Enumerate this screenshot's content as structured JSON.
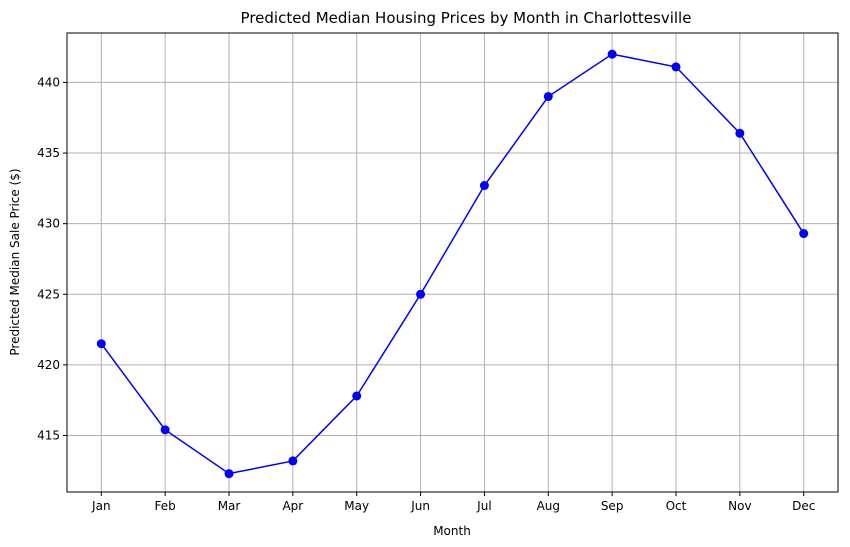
{
  "chart_data": {
    "type": "line",
    "title": "Predicted Median Housing Prices by Month in Charlottesville",
    "xlabel": "Month",
    "ylabel": "Predicted Median Sale Price ($)",
    "categories": [
      "Jan",
      "Feb",
      "Mar",
      "Apr",
      "May",
      "Jun",
      "Jul",
      "Aug",
      "Sep",
      "Oct",
      "Nov",
      "Dec"
    ],
    "series": [
      {
        "values": [
          421.5,
          415.4,
          412.3,
          413.2,
          417.8,
          425.0,
          432.7,
          439.0,
          442.0,
          441.1,
          436.4,
          429.3
        ],
        "color": "#0000ff",
        "marker": "circle"
      }
    ],
    "ylim": [
      411.0,
      443.5
    ],
    "yticks": [
      415,
      420,
      425,
      430,
      435,
      440
    ],
    "grid": true
  }
}
